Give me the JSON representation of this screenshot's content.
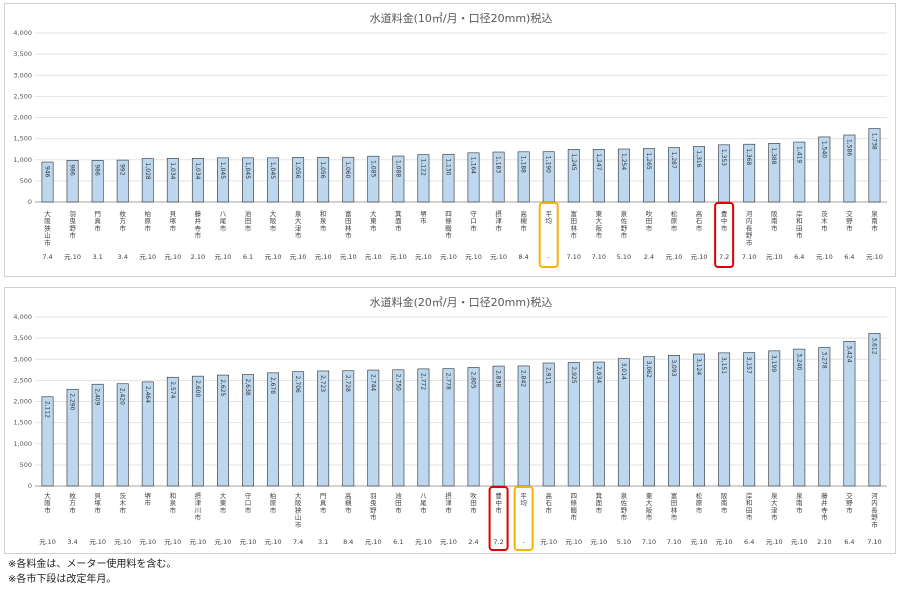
{
  "chart_data": [
    {
      "type": "bar",
      "title": "水道料金(10㎥/月・口径20mm)税込",
      "ylim": [
        0,
        4000
      ],
      "yticks": [
        "0",
        "500",
        "1,000",
        "1,500",
        "2,000",
        "2,500",
        "3,000",
        "3,500",
        "4,000"
      ],
      "grid": true,
      "categories": [
        "大阪狭山市",
        "羽曳野市",
        "門真市",
        "枚方市",
        "柏原市",
        "貝塚市",
        "藤井寺市",
        "八尾市",
        "池田市",
        "大阪市",
        "泉大津市",
        "和泉市",
        "富田林市",
        "大東市",
        "箕面市",
        "堺市",
        "四條畷市",
        "守口市",
        "摂津市",
        "高槻市",
        "平均",
        "富田林市",
        "東大阪市",
        "泉佐野市",
        "吹田市",
        "松原市",
        "高石市",
        "豊中市",
        "河内長野市",
        "阪南市",
        "岸和田市",
        "茨木市",
        "交野市",
        "泉南市"
      ],
      "values": [
        946,
        986,
        986,
        992,
        1028,
        1034,
        1034,
        1045,
        1045,
        1045,
        1056,
        1056,
        1060,
        1085,
        1088,
        1122,
        1130,
        1164,
        1183,
        1188,
        1190,
        1245,
        1247,
        1254,
        1265,
        1287,
        1316,
        1353,
        1368,
        1388,
        1419,
        1540,
        1586,
        1738
      ],
      "value_labels": [
        "946",
        "986",
        "986",
        "992",
        "1,028",
        "1,034",
        "1,034",
        "1,045",
        "1,045",
        "1,045",
        "1,056",
        "1,056",
        "1,060",
        "1,085",
        "1,088",
        "1,122",
        "1,130",
        "1,164",
        "1,183",
        "1,188",
        "1,190",
        "1,245",
        "1,247",
        "1,254",
        "1,265",
        "1,287",
        "1,316",
        "1,353",
        "1,368",
        "1,388",
        "1,419",
        "1,540",
        "1,586",
        "1,738"
      ],
      "revision": [
        "7.4",
        "元.10",
        "3.1",
        "3.4",
        "元.10",
        "元.10",
        "2.10",
        "元.10",
        "6.1",
        "元.10",
        "元.10",
        "元.10",
        "元.10",
        "元.10",
        "元.10",
        "元.10",
        "元.10",
        "元.10",
        "元.10",
        "8.4",
        "-",
        "7.10",
        "7.10",
        "5.10",
        "2.4",
        "元.10",
        "元.10",
        "7.2",
        "7.10",
        "元.10",
        "6.4",
        "元.10",
        "6.4",
        "元.10"
      ],
      "highlight_red": "豊中市",
      "highlight_orange": "平均",
      "bar_color": "#bdd7ee",
      "bar_stroke": "#2f2f2f",
      "red_color": "#e00000",
      "orange_color": "#f5b400"
    },
    {
      "type": "bar",
      "title": "水道料金(20㎥/月・口径20mm)税込",
      "ylim": [
        0,
        4000
      ],
      "yticks": [
        "0",
        "500",
        "1,000",
        "1,500",
        "2,000",
        "2,500",
        "3,000",
        "3,500",
        "4,000"
      ],
      "grid": true,
      "categories": [
        "大阪市",
        "枚方市",
        "貝塚市",
        "茨木市",
        "堺市",
        "和泉市",
        "摂津川市",
        "大東市",
        "守口市",
        "柏原市",
        "大阪狭山市",
        "門真市",
        "高槻市",
        "羽曳野市",
        "池田市",
        "八尾市",
        "摂津市",
        "吹田市",
        "豊中市",
        "平均",
        "高石市",
        "四條畷市",
        "箕面市",
        "泉佐野市",
        "東大阪市",
        "富田林市",
        "松原市",
        "阪南市",
        "岸和田市",
        "泉大津市",
        "泉南市",
        "藤井寺市",
        "交野市",
        "河内長野市"
      ],
      "values": [
        2112,
        2290,
        2409,
        2420,
        2464,
        2574,
        2600,
        2625,
        2638,
        2678,
        2706,
        2723,
        2728,
        2744,
        2750,
        2772,
        2778,
        2805,
        2838,
        2842,
        2911,
        2925,
        2934,
        3014,
        3062,
        3093,
        3124,
        3151,
        3157,
        3199,
        3240,
        3278,
        3424,
        3612
      ],
      "value_labels": [
        "2,112",
        "2,290",
        "2,409",
        "2,420",
        "2,464",
        "2,574",
        "2,600",
        "2,625",
        "2,638",
        "2,678",
        "2,706",
        "2,723",
        "2,728",
        "2,744",
        "2,750",
        "2,772",
        "2,778",
        "2,805",
        "2,838",
        "2,842",
        "2,911",
        "2,925",
        "2,934",
        "3,014",
        "3,062",
        "3,093",
        "3,124",
        "3,151",
        "3,157",
        "3,199",
        "3,240",
        "3,278",
        "3,424",
        "3,612"
      ],
      "revision": [
        "元.10",
        "3.4",
        "元.10",
        "元.10",
        "元.10",
        "元.10",
        "元.10",
        "元.10",
        "元.10",
        "元.10",
        "7.4",
        "3.1",
        "8.4",
        "元.10",
        "6.1",
        "元.10",
        "元.10",
        "2.4",
        "7.2",
        "-",
        "元.10",
        "元.10",
        "元.10",
        "5.10",
        "7.10",
        "7.10",
        "元.10",
        "元.10",
        "6.4",
        "元.10",
        "元.10",
        "2.10",
        "6.4",
        "7.10"
      ],
      "highlight_red": "豊中市",
      "highlight_orange": "平均",
      "bar_color": "#bdd7ee",
      "bar_stroke": "#2f2f2f",
      "red_color": "#e00000",
      "orange_color": "#f5b400"
    }
  ],
  "notes": [
    "※各料金は、メーター使用料を含む。",
    "※各市下段は改定年月。"
  ]
}
